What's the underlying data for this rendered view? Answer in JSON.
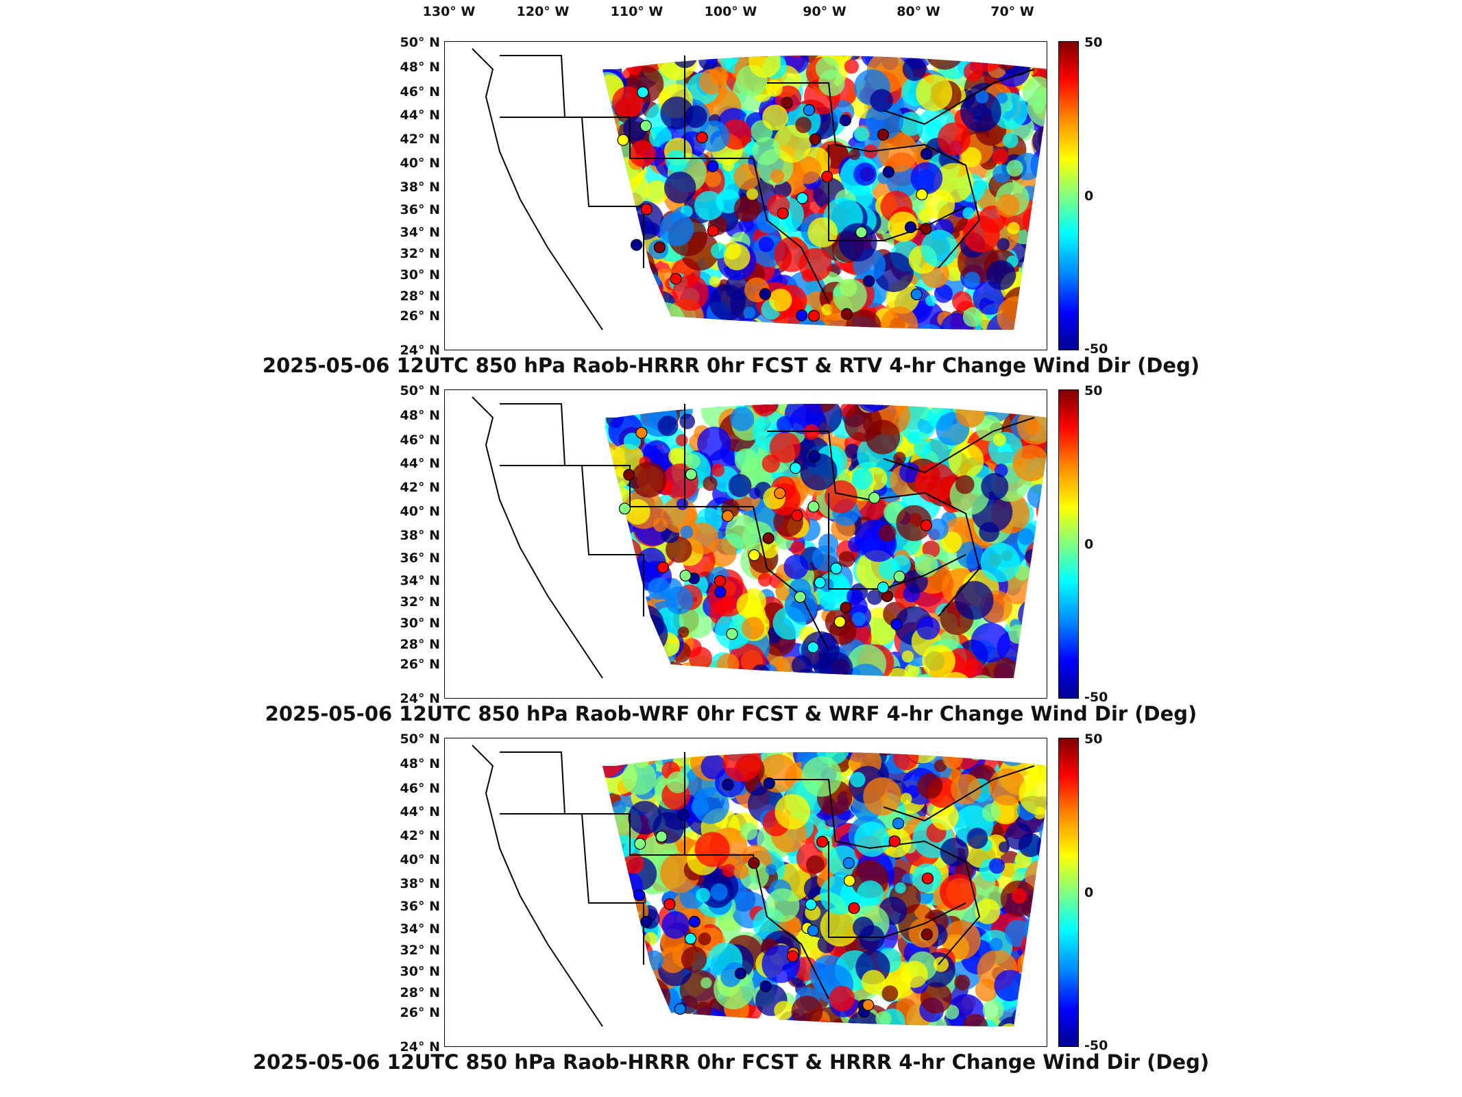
{
  "longitude_labels": [
    "130° W",
    "120° W",
    "110° W",
    "100° W",
    "90° W",
    "80° W",
    "70° W"
  ],
  "latitude_labels": [
    "50° N",
    "48° N",
    "46° N",
    "44° N",
    "42° N",
    "40° N",
    "38° N",
    "36° N",
    "34° N",
    "32° N",
    "30° N",
    "28° N",
    "26° N",
    "24° N"
  ],
  "colorbar": {
    "max_label": "50",
    "mid_label": "0",
    "min_label": "-50",
    "max": 50,
    "min": -50,
    "colors": [
      "#7f0000",
      "#ff0000",
      "#ff8000",
      "#ffff00",
      "#80ff80",
      "#00ffff",
      "#0080ff",
      "#0000ff",
      "#00008f"
    ]
  },
  "panels": [
    {
      "title": "2025-05-06 12UTC 850 hPa Raob-HRRR 0hr FCST & RTV 4-hr Change Wind Dir (Deg)"
    },
    {
      "title": "2025-05-06 12UTC 850 hPa Raob-WRF 0hr FCST & WRF 4-hr Change Wind Dir (Deg)"
    },
    {
      "title": "2025-05-06 12UTC 850 hPa Raob-HRRR 0hr FCST & HRRR 4-hr Change Wind Dir (Deg)"
    }
  ]
}
